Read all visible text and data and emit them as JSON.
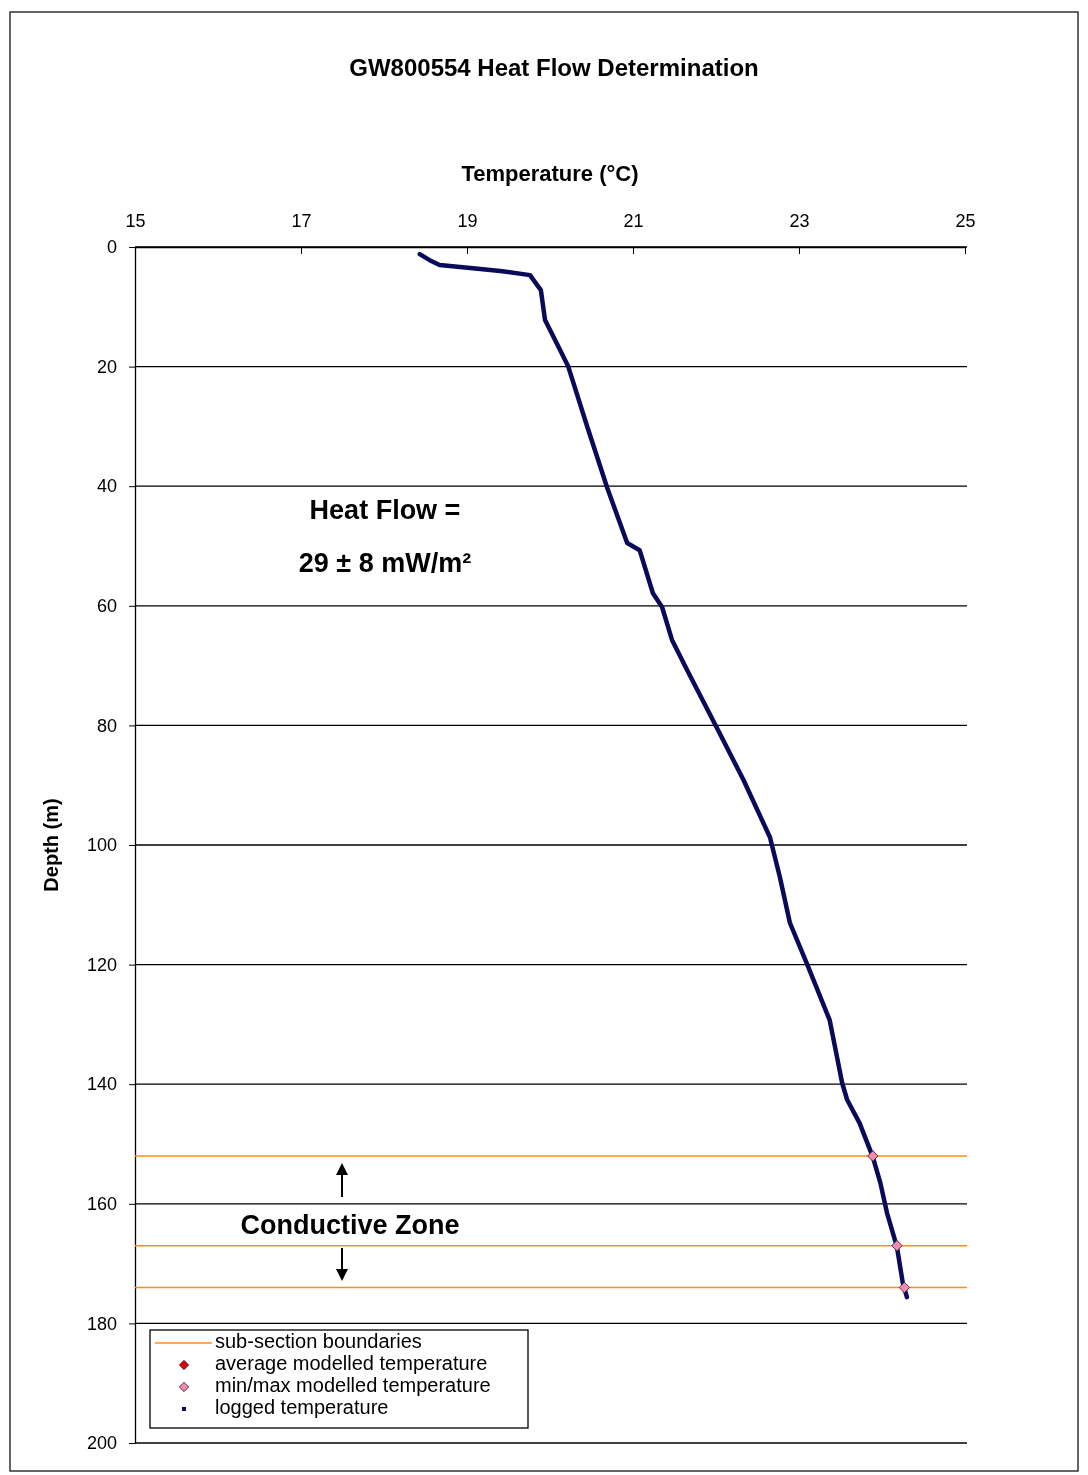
{
  "chart_data": {
    "type": "scatter",
    "title": "GW800554 Heat Flow Determination",
    "xlabel": "Temperature (°C)",
    "ylabel": "Depth (m)",
    "xlim": [
      15,
      25
    ],
    "xticks": [
      15,
      17,
      19,
      21,
      23,
      25
    ],
    "ylim": [
      200,
      0
    ],
    "yticks": [
      0,
      20,
      40,
      60,
      80,
      100,
      120,
      140,
      160,
      180,
      200
    ],
    "grid": "y",
    "legend": "bottom left",
    "annotations": [
      "Heat Flow =",
      "29 ± 8 mW/m²",
      "Conductive Zone"
    ],
    "ref_lines": [
      {
        "axis": "y",
        "value": 152,
        "label": "sub-section boundaries",
        "color": "#ff8c1a"
      },
      {
        "axis": "y",
        "value": 167,
        "color": "#ff8c1a"
      },
      {
        "axis": "y",
        "value": 174,
        "color": "#ff8c1a"
      }
    ],
    "series": [
      {
        "name": "average modelled temperature",
        "marker": "diamond",
        "color": "#e00000",
        "x": [
          null,
          null,
          null
        ],
        "values": [
          null,
          null,
          null
        ]
      },
      {
        "name": "min/max modelled temperature",
        "marker": "diamond",
        "color": "#f08cb0",
        "x": [
          23.89,
          24.18,
          24.27
        ],
        "values": [
          152,
          167,
          174
        ]
      },
      {
        "name": "logged temperature",
        "type": "line",
        "color": "#0a0a5a",
        "x": [
          18.43,
          18.55,
          18.67,
          19.04,
          19.4,
          19.76,
          19.8,
          19.89,
          19.94,
          20.12,
          20.22,
          20.45,
          20.69,
          20.93,
          21.08,
          21.24,
          21.35,
          21.47,
          21.65,
          22.01,
          22.33,
          22.65,
          22.77,
          22.89,
          23.1,
          23.37,
          23.46,
          23.52,
          23.58,
          23.73,
          23.89,
          23.98,
          24.06,
          24.18,
          24.25,
          24.3
        ],
        "values": [
          1.2,
          2.2,
          3.0,
          3.5,
          4.0,
          4.7,
          5.5,
          7.2,
          12.2,
          17.2,
          20,
          30.1,
          40.3,
          49.5,
          50.7,
          57.9,
          60.2,
          65.7,
          70.7,
          80.4,
          89.1,
          98.7,
          105.4,
          113,
          120,
          129.3,
          135.6,
          139.8,
          142.6,
          146.5,
          152.2,
          156.5,
          161.5,
          167.2,
          173.2,
          175.6
        ]
      }
    ]
  }
}
